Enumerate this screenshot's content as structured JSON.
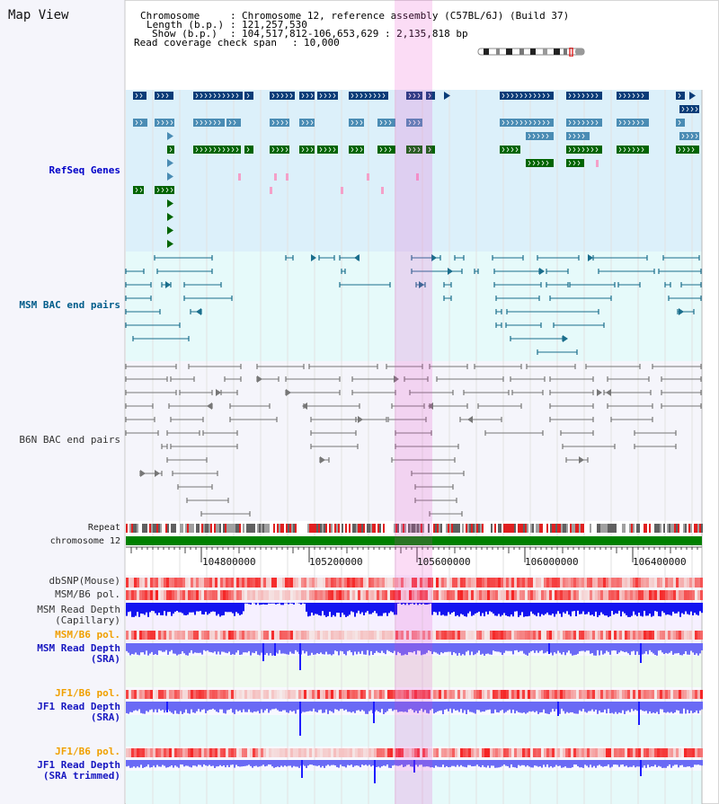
{
  "view": {
    "title": "Map View"
  },
  "info": {
    "chromosome_key": "Chromosome",
    "chromosome_value": "Chromosome 12, reference assembly (C57BL/6J) (Build 37)",
    "length_key": "Length (b.p.)",
    "length_value": "121,257,530",
    "show_key": "Show (b.p.)",
    "show_value": "104,517,812-106,653,629 : 2,135,818 bp",
    "coverage_key": "Read coverage check span",
    "coverage_value": "10,000"
  },
  "tracks": {
    "refseq": "RefSeq Genes",
    "msm_bac": "MSM BAC end pairs",
    "b6n_bac": "B6N BAC end pairs",
    "repeat": "Repeat",
    "chromosome": "chromosome 12",
    "dbsnp": "dbSNP(Mouse)",
    "msm_b6_pol": "MSM/B6 pol.",
    "msm_depth_cap_1": "MSM Read Depth",
    "msm_depth_cap_2": "(Capillary)",
    "msm_b6_pol_2": "MSM/B6 pol.",
    "msm_depth_sra_1": "MSM Read Depth",
    "msm_depth_sra_2": "(SRA)",
    "jf1_b6_pol": "JF1/B6 pol.",
    "jf1_depth_sra_1": "JF1 Read Depth",
    "jf1_depth_sra_2": "(SRA)",
    "jf1_b6_pol_2": "JF1/B6 pol.",
    "jf1_depth_trim_1": "JF1 Read Depth",
    "jf1_depth_trim_2": "(SRA trimmed)"
  },
  "axis": {
    "ticks": [
      "104800000",
      "105200000",
      "105600000",
      "106000000",
      "106400000"
    ]
  },
  "colors": {
    "refseq_bg": "#dcf0fa",
    "bac_bg": "#e6fafa",
    "b6n_bg": "#f5f5fb",
    "highlight": "#f5d2f0",
    "gene_navy": "#0a3c78",
    "gene_steel": "#4a8cb4",
    "gene_green": "#006400",
    "gene_pink": "#f4a0c8",
    "msm_bac_line": "#1a6e8c",
    "b6n_bac_line": "#777777",
    "chromosome_bar": "#008000",
    "depth_blue": "#1e1eff",
    "depth_light": "#6a6af5"
  }
}
